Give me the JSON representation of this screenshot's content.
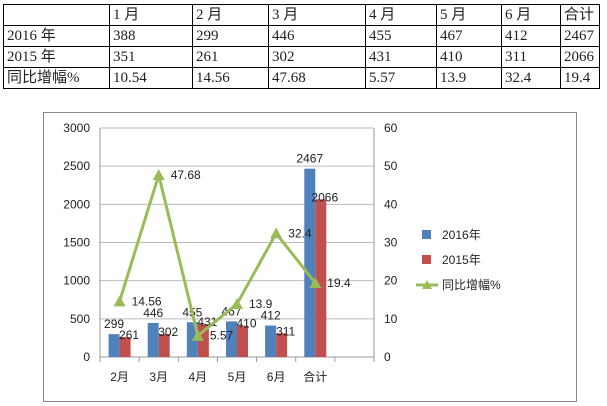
{
  "table": {
    "header": [
      "",
      "1 月",
      "2 月",
      "3 月",
      "4 月",
      "5 月",
      "6 月",
      "合计"
    ],
    "rows": [
      [
        "2016 年",
        "388",
        "299",
        "446",
        "455",
        "467",
        "412",
        "2467"
      ],
      [
        "2015 年",
        "351",
        "261",
        "302",
        "431",
        "410",
        "311",
        "2066"
      ],
      [
        "同比增幅%",
        "10.54",
        "14.56",
        "47.68",
        "5.57",
        "13.9",
        "32.4",
        "19.4"
      ]
    ]
  },
  "chart_data": {
    "type": "bar+line",
    "categories": [
      "2月",
      "3月",
      "4月",
      "5月",
      "6月",
      "合计"
    ],
    "series": [
      {
        "name": "2016年",
        "type": "bar",
        "axis": "left",
        "color": "#4F81BD",
        "values": [
          299,
          446,
          455,
          467,
          412,
          2467
        ]
      },
      {
        "name": "2015年",
        "type": "bar",
        "axis": "left",
        "color": "#C0504D",
        "values": [
          261,
          302,
          431,
          410,
          311,
          2066
        ]
      },
      {
        "name": "同比增幅%",
        "type": "line",
        "axis": "right",
        "color": "#9BBB59",
        "marker": "triangle",
        "values": [
          14.56,
          47.68,
          5.57,
          13.9,
          32.4,
          19.4
        ]
      }
    ],
    "ylim_left": [
      0,
      3000
    ],
    "yticks_left": [
      "0",
      "500",
      "1000",
      "1500",
      "2000",
      "2500",
      "3000"
    ],
    "ylim_right": [
      0,
      60
    ],
    "yticks_right": [
      "0",
      "10",
      "20",
      "30",
      "40",
      "50",
      "60"
    ],
    "grid": true,
    "legend": "right"
  }
}
